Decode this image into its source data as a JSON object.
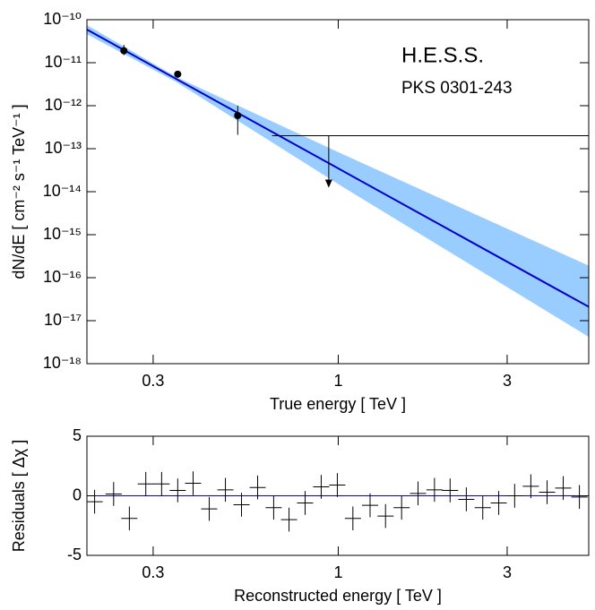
{
  "chart_data": [
    {
      "type": "line",
      "xlabel": "True energy  [ TeV ]",
      "ylabel": "dN/dE  [ cm⁻² s⁻¹ TeV⁻¹ ]",
      "annotations": [
        "H.E.S.S.",
        "PKS 0301-243"
      ],
      "xscale": "log",
      "yscale": "log",
      "xlim": [
        0.195,
        5.1
      ],
      "ylim": [
        1e-18,
        1e-10
      ],
      "xticks": [
        0.3,
        1,
        3
      ],
      "yticks": [
        {
          "value": 1e-10,
          "label": "10⁻¹⁰"
        },
        {
          "value": 1e-11,
          "label": "10⁻¹¹"
        },
        {
          "value": 1e-12,
          "label": "10⁻¹²"
        },
        {
          "value": 1e-13,
          "label": "10⁻¹³"
        },
        {
          "value": 1e-14,
          "label": "10⁻¹⁴"
        },
        {
          "value": 1e-15,
          "label": "10⁻¹⁵"
        },
        {
          "value": 1e-16,
          "label": "10⁻¹⁶"
        },
        {
          "value": 1e-17,
          "label": "10⁻¹⁷"
        },
        {
          "value": 1e-18,
          "label": "10⁻¹⁸"
        }
      ],
      "band": {
        "x": [
          0.195,
          0.35,
          1,
          5.1
        ],
        "lower": [
          4.6e-11,
          3.5e-12,
          1.5e-14,
          4.2e-18
        ],
        "upper": [
          7.5e-11,
          4.6e-12,
          8.3e-14,
          1.9e-16
        ],
        "color": "#99ccff"
      },
      "fit": {
        "x": [
          0.195,
          5.1
        ],
        "values": [
          5.9e-11,
          2.1e-17
        ],
        "color": "#0000cc"
      },
      "points": {
        "x": [
          0.248,
          0.352,
          0.52
        ],
        "values": [
          1.9e-11,
          5.4e-12,
          5.9e-13
        ],
        "err_low": [
          1.5e-11,
          4.9e-12,
          2.1e-13
        ],
        "err_high": [
          2.6e-11,
          6e-12,
          1e-12
        ],
        "color": "#000000"
      },
      "upper_limit": {
        "x": 0.94,
        "x_range": [
          0.65,
          5.1
        ],
        "value": 2e-13,
        "color": "#000000"
      }
    },
    {
      "type": "scatter",
      "xlabel": "Reconstructed energy  [ TeV ]",
      "ylabel": "Residuals  [ Δχ ]",
      "xscale": "log",
      "xlim": [
        0.195,
        5.1
      ],
      "ylim": [
        -5,
        5
      ],
      "xticks": [
        0.3,
        1,
        3
      ],
      "yticks": [
        -5,
        0,
        5
      ],
      "x": [
        0.205,
        0.232,
        0.257,
        0.286,
        0.317,
        0.352,
        0.389,
        0.432,
        0.48,
        0.533,
        0.592,
        0.657,
        0.726,
        0.806,
        0.895,
        0.994,
        1.1,
        1.23,
        1.36,
        1.51,
        1.68,
        1.87,
        2.07,
        2.3,
        2.56,
        2.84,
        3.15,
        3.5,
        3.89,
        4.32,
        4.8
      ],
      "values": [
        -0.5,
        0.15,
        -1.9,
        1.0,
        1.0,
        0.45,
        1.05,
        -1.1,
        0.5,
        -0.75,
        0.7,
        -1.0,
        -2.0,
        -0.6,
        0.75,
        0.9,
        -1.9,
        -0.8,
        -1.7,
        -1.0,
        0.2,
        0.5,
        0.45,
        -0.3,
        -1.0,
        -0.6,
        0.0,
        0.8,
        0.3,
        0.65,
        -0.1
      ],
      "errors": [
        1,
        1,
        1,
        1,
        1,
        1,
        1,
        1,
        1,
        1,
        1,
        1,
        1,
        1,
        1,
        1,
        1,
        1,
        1,
        1,
        1,
        1,
        1,
        1,
        1,
        1,
        1,
        1,
        1,
        1,
        1
      ],
      "color": "#000000",
      "reference_line": {
        "value": 0,
        "color": "#0000cc"
      }
    }
  ]
}
